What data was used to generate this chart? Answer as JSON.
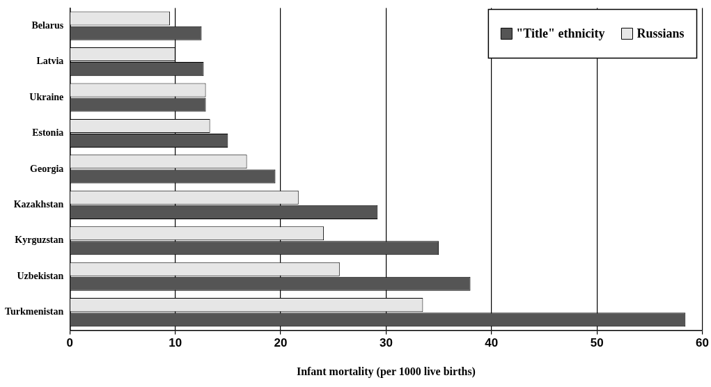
{
  "chart_data": {
    "type": "bar",
    "orientation": "horizontal",
    "xlabel": "Infant mortality (per 1000 live births)",
    "categories": [
      "Belarus",
      "Latvia",
      "Ukraine",
      "Estonia",
      "Georgia",
      "Kazakhstan",
      "Kyrguzstan",
      "Uzbekistan",
      "Turkmenistan"
    ],
    "series": [
      {
        "name": "Russians",
        "color": "#e6e6e6",
        "values": [
          9.5,
          10.0,
          12.9,
          13.3,
          16.8,
          21.7,
          24.1,
          25.6,
          33.5
        ]
      },
      {
        "name": "\"Title\" ethnicity",
        "color": "#555555",
        "values": [
          12.5,
          12.7,
          12.9,
          15.0,
          19.5,
          29.2,
          35.0,
          38.0,
          58.4
        ]
      }
    ],
    "xlim": [
      0,
      60
    ],
    "xticks": [
      0,
      10,
      20,
      30,
      40,
      50,
      60
    ],
    "grid": "x",
    "legend": "top right"
  }
}
